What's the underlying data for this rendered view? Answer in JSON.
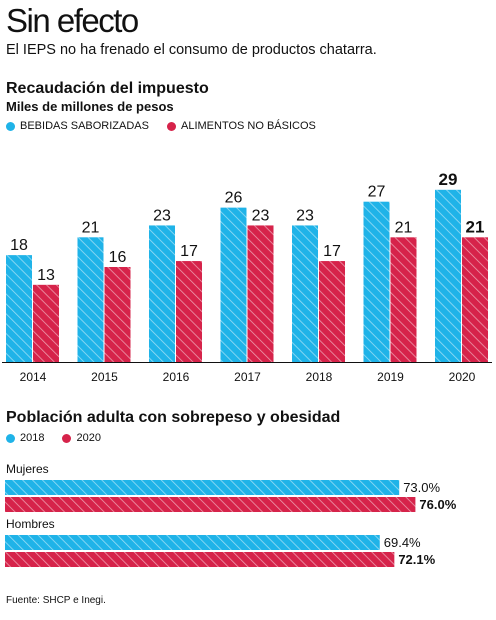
{
  "header": {
    "title": "Sin efecto",
    "subtitle": "El IEPS no ha frenado el consumo de productos chatarra."
  },
  "colors": {
    "blue": "#1fb3e8",
    "red": "#d6234a"
  },
  "chart_data": [
    {
      "type": "bar",
      "title": "Recaudación del impuesto",
      "ylabel": "Miles de millones de pesos",
      "categories": [
        "2014",
        "2015",
        "2016",
        "2017",
        "2018",
        "2019",
        "2020"
      ],
      "series": [
        {
          "name": "BEBIDAS SABORIZADAS",
          "color": "#1fb3e8",
          "values": [
            18,
            21,
            23,
            26,
            23,
            27,
            29
          ]
        },
        {
          "name": "ALIMENTOS NO BÁSICOS",
          "color": "#d6234a",
          "values": [
            13,
            16,
            17,
            23,
            17,
            21,
            21
          ]
        }
      ],
      "value_labels": [
        [
          "18",
          "21",
          "23",
          "26",
          "23",
          "27",
          "29"
        ],
        [
          "13",
          "16",
          "17",
          "23",
          "17",
          "21",
          "21"
        ]
      ],
      "highlight_last": true,
      "ylim": [
        0,
        32
      ],
      "grid": false,
      "legend": "top-left"
    },
    {
      "type": "bar",
      "orientation": "horizontal",
      "title": "Población adulta con sobrepeso y obesidad",
      "categories": [
        "Mujeres",
        "Hombres"
      ],
      "series": [
        {
          "name": "2018",
          "color": "#1fb3e8",
          "values": [
            73.0,
            69.4
          ]
        },
        {
          "name": "2020",
          "color": "#d6234a",
          "values": [
            76.0,
            72.1
          ]
        }
      ],
      "value_labels": [
        [
          "73.0%",
          "69.4%"
        ],
        [
          "76.0%",
          "72.1%"
        ]
      ],
      "xlim": [
        0,
        100
      ],
      "grid": false,
      "legend": "top-left"
    }
  ],
  "footer": {
    "source": "Fuente: SHCP e Inegi."
  }
}
